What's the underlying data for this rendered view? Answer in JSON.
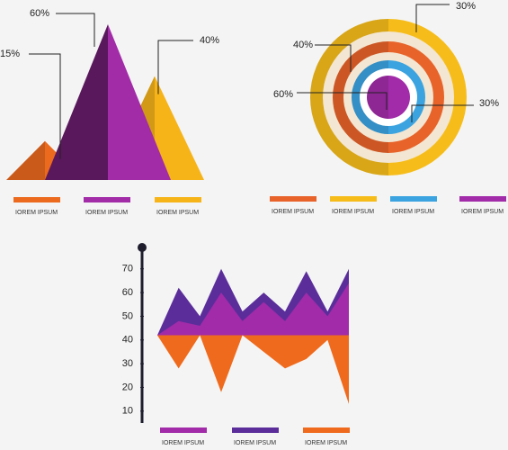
{
  "chart_data": [
    {
      "type": "pyramid",
      "series": [
        {
          "name": "IOREM IPSUM",
          "color": "#ec6a1e",
          "value": 15,
          "value_label": "15%"
        },
        {
          "name": "IOREM IPSUM",
          "color": "#a22ba8",
          "value": 60,
          "value_label": "60%"
        },
        {
          "name": "IOREM IPSUM",
          "color": "#f6b419",
          "value": 40,
          "value_label": "40%"
        }
      ]
    },
    {
      "type": "rings",
      "series": [
        {
          "name": "IOREM IPSUM",
          "color": "#e8632a",
          "value": 40,
          "value_label": "40%"
        },
        {
          "name": "IOREM IPSUM",
          "color": "#f6bd1a",
          "value": 30,
          "value_label": "30%"
        },
        {
          "name": "IOREM IPSUM",
          "color": "#3aa3e0",
          "value": 30,
          "value_label": "30%"
        },
        {
          "name": "IOREM IPSUM",
          "color": "#a12ba8",
          "value": 60,
          "value_label": "60%"
        }
      ]
    },
    {
      "type": "area",
      "categories": [
        null,
        null,
        null,
        null,
        null,
        null,
        null,
        null,
        null,
        null
      ],
      "ylim": [
        5,
        79
      ],
      "yticks": [
        10,
        20,
        30,
        40,
        50,
        60,
        70
      ],
      "baseline": 42,
      "series": [
        {
          "name": "IOREM IPSUM",
          "color": "#a12ba8",
          "values": [
            42,
            48,
            46,
            60,
            48,
            56,
            48,
            60,
            50,
            64
          ]
        },
        {
          "name": "IOREM IPSUM",
          "color": "#5b2d9a",
          "values": [
            42,
            62,
            50,
            70,
            52,
            60,
            52,
            69,
            52,
            70
          ]
        },
        {
          "name": "IOREM IPSUM",
          "color": "#ef6a1c",
          "values": [
            42,
            28,
            42,
            18,
            42,
            35,
            28,
            32,
            40,
            13
          ]
        }
      ]
    }
  ]
}
